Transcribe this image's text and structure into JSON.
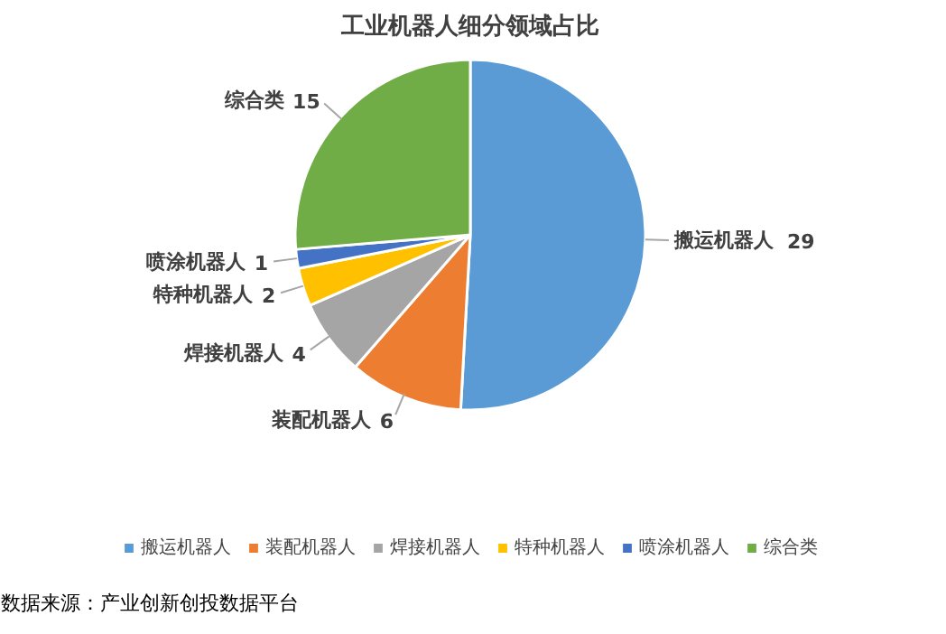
{
  "chart_data": {
    "type": "pie",
    "title": "工业机器人细分领域占比",
    "categories": [
      "搬运机器人",
      "装配机器人",
      "焊接机器人",
      "特种机器人",
      "喷涂机器人",
      "综合类"
    ],
    "values": [
      29,
      6,
      4,
      2,
      1,
      15
    ],
    "colors": [
      "#5b9bd5",
      "#ed7d31",
      "#a5a5a5",
      "#ffc000",
      "#4472c4",
      "#70ad47"
    ],
    "data_labels": true,
    "legend": "bottom",
    "annotations": [
      "数据来源：产业创新创投数据平台"
    ]
  }
}
